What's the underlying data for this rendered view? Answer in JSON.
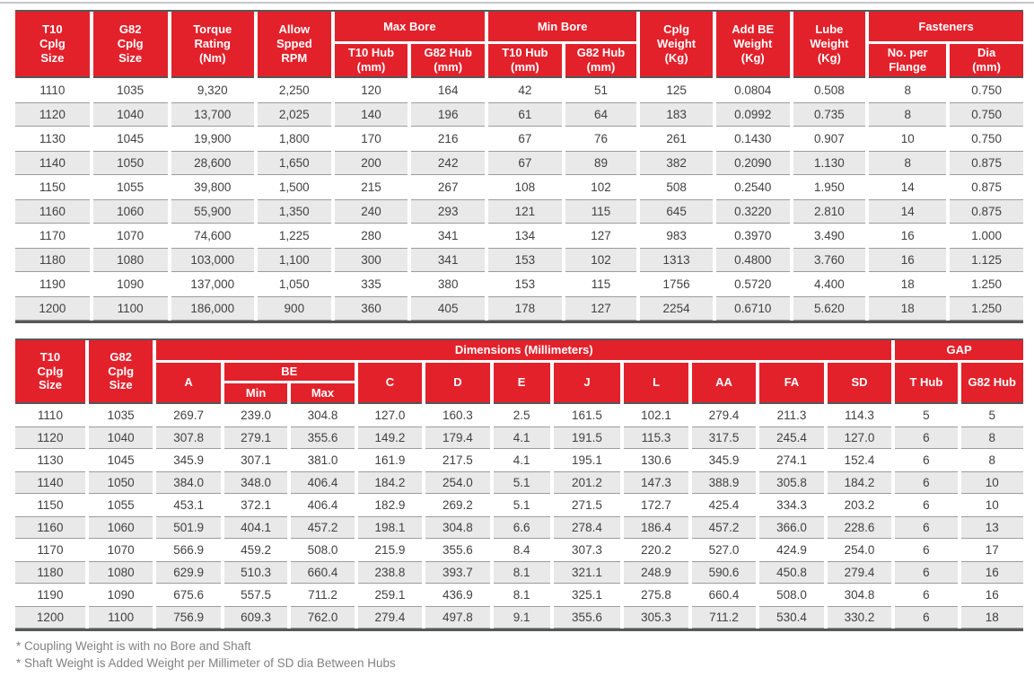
{
  "colors": {
    "header_red": "#e3212b",
    "dark_rule": "#57585a",
    "stripe": "#e9e9e9",
    "stripe_border": "#9c9c9c"
  },
  "t1": {
    "h": {
      "t10": "T10\nCplg\nSize",
      "g82": "G82\nCplg\nSize",
      "torque": "Torque\nRating\n(Nm)",
      "rpm": "Allow\nSpped\nRPM",
      "max_bore": "Max Bore",
      "min_bore": "Min Bore",
      "t10_hub": "T10 Hub\n(mm)",
      "g82_hub": "G82 Hub\n(mm)",
      "cplg_weight": "Cplg\nWeight\n(Kg)",
      "add_be_weight": "Add BE\nWeight\n(Kg)",
      "lube_weight": "Lube\nWeight\n(Kg)",
      "fasteners": "Fasteners",
      "no_per_flange": "No. per\nFlange",
      "dia": "Dia\n(mm)"
    },
    "rows": [
      [
        "1110",
        "1035",
        "9,320",
        "2,250",
        "120",
        "164",
        "42",
        "51",
        "125",
        "0.0804",
        "0.508",
        "8",
        "0.750"
      ],
      [
        "1120",
        "1040",
        "13,700",
        "2,025",
        "140",
        "196",
        "61",
        "64",
        "183",
        "0.0992",
        "0.735",
        "8",
        "0.750"
      ],
      [
        "1130",
        "1045",
        "19,900",
        "1,800",
        "170",
        "216",
        "67",
        "76",
        "261",
        "0.1430",
        "0.907",
        "10",
        "0.750"
      ],
      [
        "1140",
        "1050",
        "28,600",
        "1,650",
        "200",
        "242",
        "67",
        "89",
        "382",
        "0.2090",
        "1.130",
        "8",
        "0.875"
      ],
      [
        "1150",
        "1055",
        "39,800",
        "1,500",
        "215",
        "267",
        "108",
        "102",
        "508",
        "0.2540",
        "1.950",
        "14",
        "0.875"
      ],
      [
        "1160",
        "1060",
        "55,900",
        "1,350",
        "240",
        "293",
        "121",
        "115",
        "645",
        "0.3220",
        "2.810",
        "14",
        "0.875"
      ],
      [
        "1170",
        "1070",
        "74,600",
        "1,225",
        "280",
        "341",
        "134",
        "127",
        "983",
        "0.3970",
        "3.490",
        "16",
        "1.000"
      ],
      [
        "1180",
        "1080",
        "103,000",
        "1,100",
        "300",
        "341",
        "153",
        "102",
        "1313",
        "0.4800",
        "3.760",
        "16",
        "1.125"
      ],
      [
        "1190",
        "1090",
        "137,000",
        "1,050",
        "335",
        "380",
        "153",
        "115",
        "1756",
        "0.5720",
        "4.400",
        "18",
        "1.250"
      ],
      [
        "1200",
        "1100",
        "186,000",
        "900",
        "360",
        "405",
        "178",
        "127",
        "2254",
        "0.6710",
        "5.620",
        "18",
        "1.250"
      ]
    ]
  },
  "t2": {
    "h": {
      "t10": "T10\nCplg\nSize",
      "g82": "G82\nCplg\nSize",
      "dims": "Dimensions (Millimeters)",
      "a": "A",
      "be": "BE",
      "min": "Min",
      "max": "Max",
      "c": "C",
      "d": "D",
      "e": "E",
      "j": "J",
      "l": "L",
      "aa": "AA",
      "fa": "FA",
      "sd": "SD",
      "gap": "GAP",
      "t_hub": "T Hub",
      "g82_hub": "G82 Hub"
    },
    "rows": [
      [
        "1110",
        "1035",
        "269.7",
        "239.0",
        "304.8",
        "127.0",
        "160.3",
        "2.5",
        "161.5",
        "102.1",
        "279.4",
        "211.3",
        "114.3",
        "5",
        "5"
      ],
      [
        "1120",
        "1040",
        "307.8",
        "279.1",
        "355.6",
        "149.2",
        "179.4",
        "4.1",
        "191.5",
        "115.3",
        "317.5",
        "245.4",
        "127.0",
        "6",
        "8"
      ],
      [
        "1130",
        "1045",
        "345.9",
        "307.1",
        "381.0",
        "161.9",
        "217.5",
        "4.1",
        "195.1",
        "130.6",
        "345.9",
        "274.1",
        "152.4",
        "6",
        "8"
      ],
      [
        "1140",
        "1050",
        "384.0",
        "348.0",
        "406.4",
        "184.2",
        "254.0",
        "5.1",
        "201.2",
        "147.3",
        "388.9",
        "305.8",
        "184.2",
        "6",
        "10"
      ],
      [
        "1150",
        "1055",
        "453.1",
        "372.1",
        "406.4",
        "182.9",
        "269.2",
        "5.1",
        "271.5",
        "172.7",
        "425.4",
        "334.3",
        "203.2",
        "6",
        "10"
      ],
      [
        "1160",
        "1060",
        "501.9",
        "404.1",
        "457.2",
        "198.1",
        "304.8",
        "6.6",
        "278.4",
        "186.4",
        "457.2",
        "366.0",
        "228.6",
        "6",
        "13"
      ],
      [
        "1170",
        "1070",
        "566.9",
        "459.2",
        "508.0",
        "215.9",
        "355.6",
        "8.4",
        "307.3",
        "220.2",
        "527.0",
        "424.9",
        "254.0",
        "6",
        "17"
      ],
      [
        "1180",
        "1080",
        "629.9",
        "510.3",
        "660.4",
        "238.8",
        "393.7",
        "8.1",
        "321.1",
        "248.9",
        "590.6",
        "450.8",
        "279.4",
        "6",
        "16"
      ],
      [
        "1190",
        "1090",
        "675.6",
        "557.5",
        "711.2",
        "259.1",
        "436.9",
        "8.1",
        "325.1",
        "275.8",
        "660.4",
        "508.0",
        "304.8",
        "6",
        "16"
      ],
      [
        "1200",
        "1100",
        "756.9",
        "609.3",
        "762.0",
        "279.4",
        "497.8",
        "9.1",
        "355.6",
        "305.3",
        "711.2",
        "530.4",
        "330.2",
        "6",
        "18"
      ]
    ]
  },
  "footnotes": [
    "* Coupling Weight is with no Bore and Shaft",
    "* Shaft Weight is Added Weight per Millimeter of SD dia Between Hubs"
  ]
}
